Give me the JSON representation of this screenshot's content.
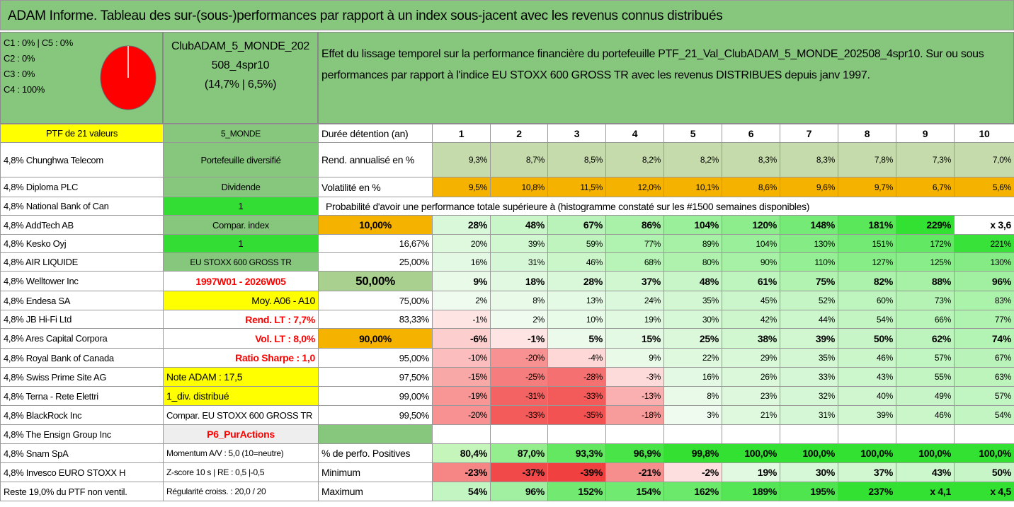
{
  "title": "ADAM Informe. Tableau des sur-(sous-)performances par rapport à un index sous-jacent avec les revenus connus distribués",
  "summary": {
    "allocation": [
      "C1 : 0% | C5 : 0%",
      "C2 : 0%",
      "C3 : 0%",
      "C4 : 100%"
    ],
    "portfolio": [
      "ClubADAM_5_MONDE_202",
      "508_4spr10",
      "(14,7% | 6,5%)"
    ],
    "description": "Effet du lissage temporel sur la performance financière du portefeuille PTF_21_Val_ClubADAM_5_MONDE_202508_4spr10. Sur ou sous performances par rapport à l'indice EU STOXX 600 GROSS TR avec les revenus DISTRIBUES depuis janv 1997."
  },
  "table": {
    "rows": [
      [
        "PTF de 21 valeurs",
        "5_MONDE",
        "Durée détention (an)",
        "1",
        "2",
        "3",
        "4",
        "5",
        "6",
        "7",
        "8",
        "9",
        "10"
      ],
      [
        "4,8% Chunghwa Telecom",
        "Portefeuille diversifié",
        "Rend. annualisé en %",
        "9,3%",
        "8,7%",
        "8,5%",
        "8,2%",
        "8,2%",
        "8,3%",
        "8,3%",
        "7,8%",
        "7,3%",
        "7,0%"
      ],
      [
        "4,8% Diploma PLC",
        "Dividende",
        "Volatilité en %",
        "9,5%",
        "10,8%",
        "11,5%",
        "12,0%",
        "10,1%",
        "8,6%",
        "9,6%",
        "9,7%",
        "6,7%",
        "5,6%"
      ],
      [
        "4,8% National Bank of Can",
        "1",
        "Probabilité d'avoir une performance totale supérieure à (histogramme constaté sur les #1500 semaines disponibles)"
      ],
      [
        "4,8% AddTech AB",
        "Compar. index",
        "10,00%",
        "28%",
        "48%",
        "67%",
        "86%",
        "104%",
        "120%",
        "148%",
        "181%",
        "229%",
        "x 3,6"
      ],
      [
        "4,8% Kesko Oyj",
        "1",
        "16,67%",
        "20%",
        "39%",
        "59%",
        "77%",
        "89%",
        "104%",
        "130%",
        "151%",
        "172%",
        "221%"
      ],
      [
        "4,8% AIR LIQUIDE",
        "EU STOXX 600 GROSS TR",
        "25,00%",
        "16%",
        "31%",
        "46%",
        "68%",
        "80%",
        "90%",
        "110%",
        "127%",
        "125%",
        "130%"
      ],
      [
        "4,8% Welltower Inc",
        "1997W01 - 2026W05",
        "50,00%",
        "9%",
        "18%",
        "28%",
        "37%",
        "48%",
        "61%",
        "75%",
        "82%",
        "88%",
        "96%"
      ],
      [
        "4,8% Endesa SA",
        "Moy. A06 - A10",
        "75,00%",
        "2%",
        "8%",
        "13%",
        "24%",
        "35%",
        "45%",
        "52%",
        "60%",
        "73%",
        "83%"
      ],
      [
        "4,8% JB Hi-Fi Ltd",
        "Rend. LT : 7,7%",
        "83,33%",
        "-1%",
        "2%",
        "10%",
        "19%",
        "30%",
        "42%",
        "44%",
        "54%",
        "66%",
        "77%"
      ],
      [
        "4,8% Ares Capital Corpora",
        "Vol. LT : 8,0%",
        "90,00%",
        "-6%",
        "-1%",
        "5%",
        "15%",
        "25%",
        "38%",
        "39%",
        "50%",
        "62%",
        "74%"
      ],
      [
        "4,8% Royal Bank of Canada",
        "Ratio Sharpe : 1,0",
        "95,00%",
        "-10%",
        "-20%",
        "-4%",
        "9%",
        "22%",
        "29%",
        "35%",
        "46%",
        "57%",
        "67%"
      ],
      [
        "4,8% Swiss Prime Site AG",
        "Note ADAM : 17,5",
        "97,50%",
        "-15%",
        "-25%",
        "-28%",
        "-3%",
        "16%",
        "26%",
        "33%",
        "43%",
        "55%",
        "63%"
      ],
      [
        "4,8% Terna - Rete Elettri",
        "1_div. distribué",
        "99,00%",
        "-19%",
        "-31%",
        "-33%",
        "-13%",
        "8%",
        "23%",
        "32%",
        "40%",
        "49%",
        "57%"
      ],
      [
        "4,8% BlackRock Inc",
        "Compar. EU STOXX 600 GROSS TR",
        "99,50%",
        "-20%",
        "-33%",
        "-35%",
        "-18%",
        "3%",
        "21%",
        "31%",
        "39%",
        "46%",
        "54%"
      ],
      [
        "4,8% The Ensign Group Inc",
        "P6_PurActions"
      ],
      [
        "4,8% Snam SpA",
        "Momentum A/V : 5,0 (10=neutre)",
        "% de perfo. Positives",
        "80,4%",
        "87,0%",
        "93,3%",
        "96,9%",
        "99,8%",
        "100,0%",
        "100,0%",
        "100,0%",
        "100,0%",
        "100,0%"
      ],
      [
        "4,8% Invesco EURO STOXX H",
        "Z-score 10 s | RE : 0,5 |-0,5",
        "Minimum",
        "-23%",
        "-37%",
        "-39%",
        "-21%",
        "-2%",
        "19%",
        "30%",
        "37%",
        "43%",
        "50%"
      ],
      [
        "Reste 19,0% du PTF non ventil.",
        "Régularité croiss. : 20,0 / 20",
        "Maximum",
        "54%",
        "96%",
        "152%",
        "154%",
        "162%",
        "189%",
        "195%",
        "237%",
        "x 4,1",
        "x 4,5"
      ]
    ]
  }
}
